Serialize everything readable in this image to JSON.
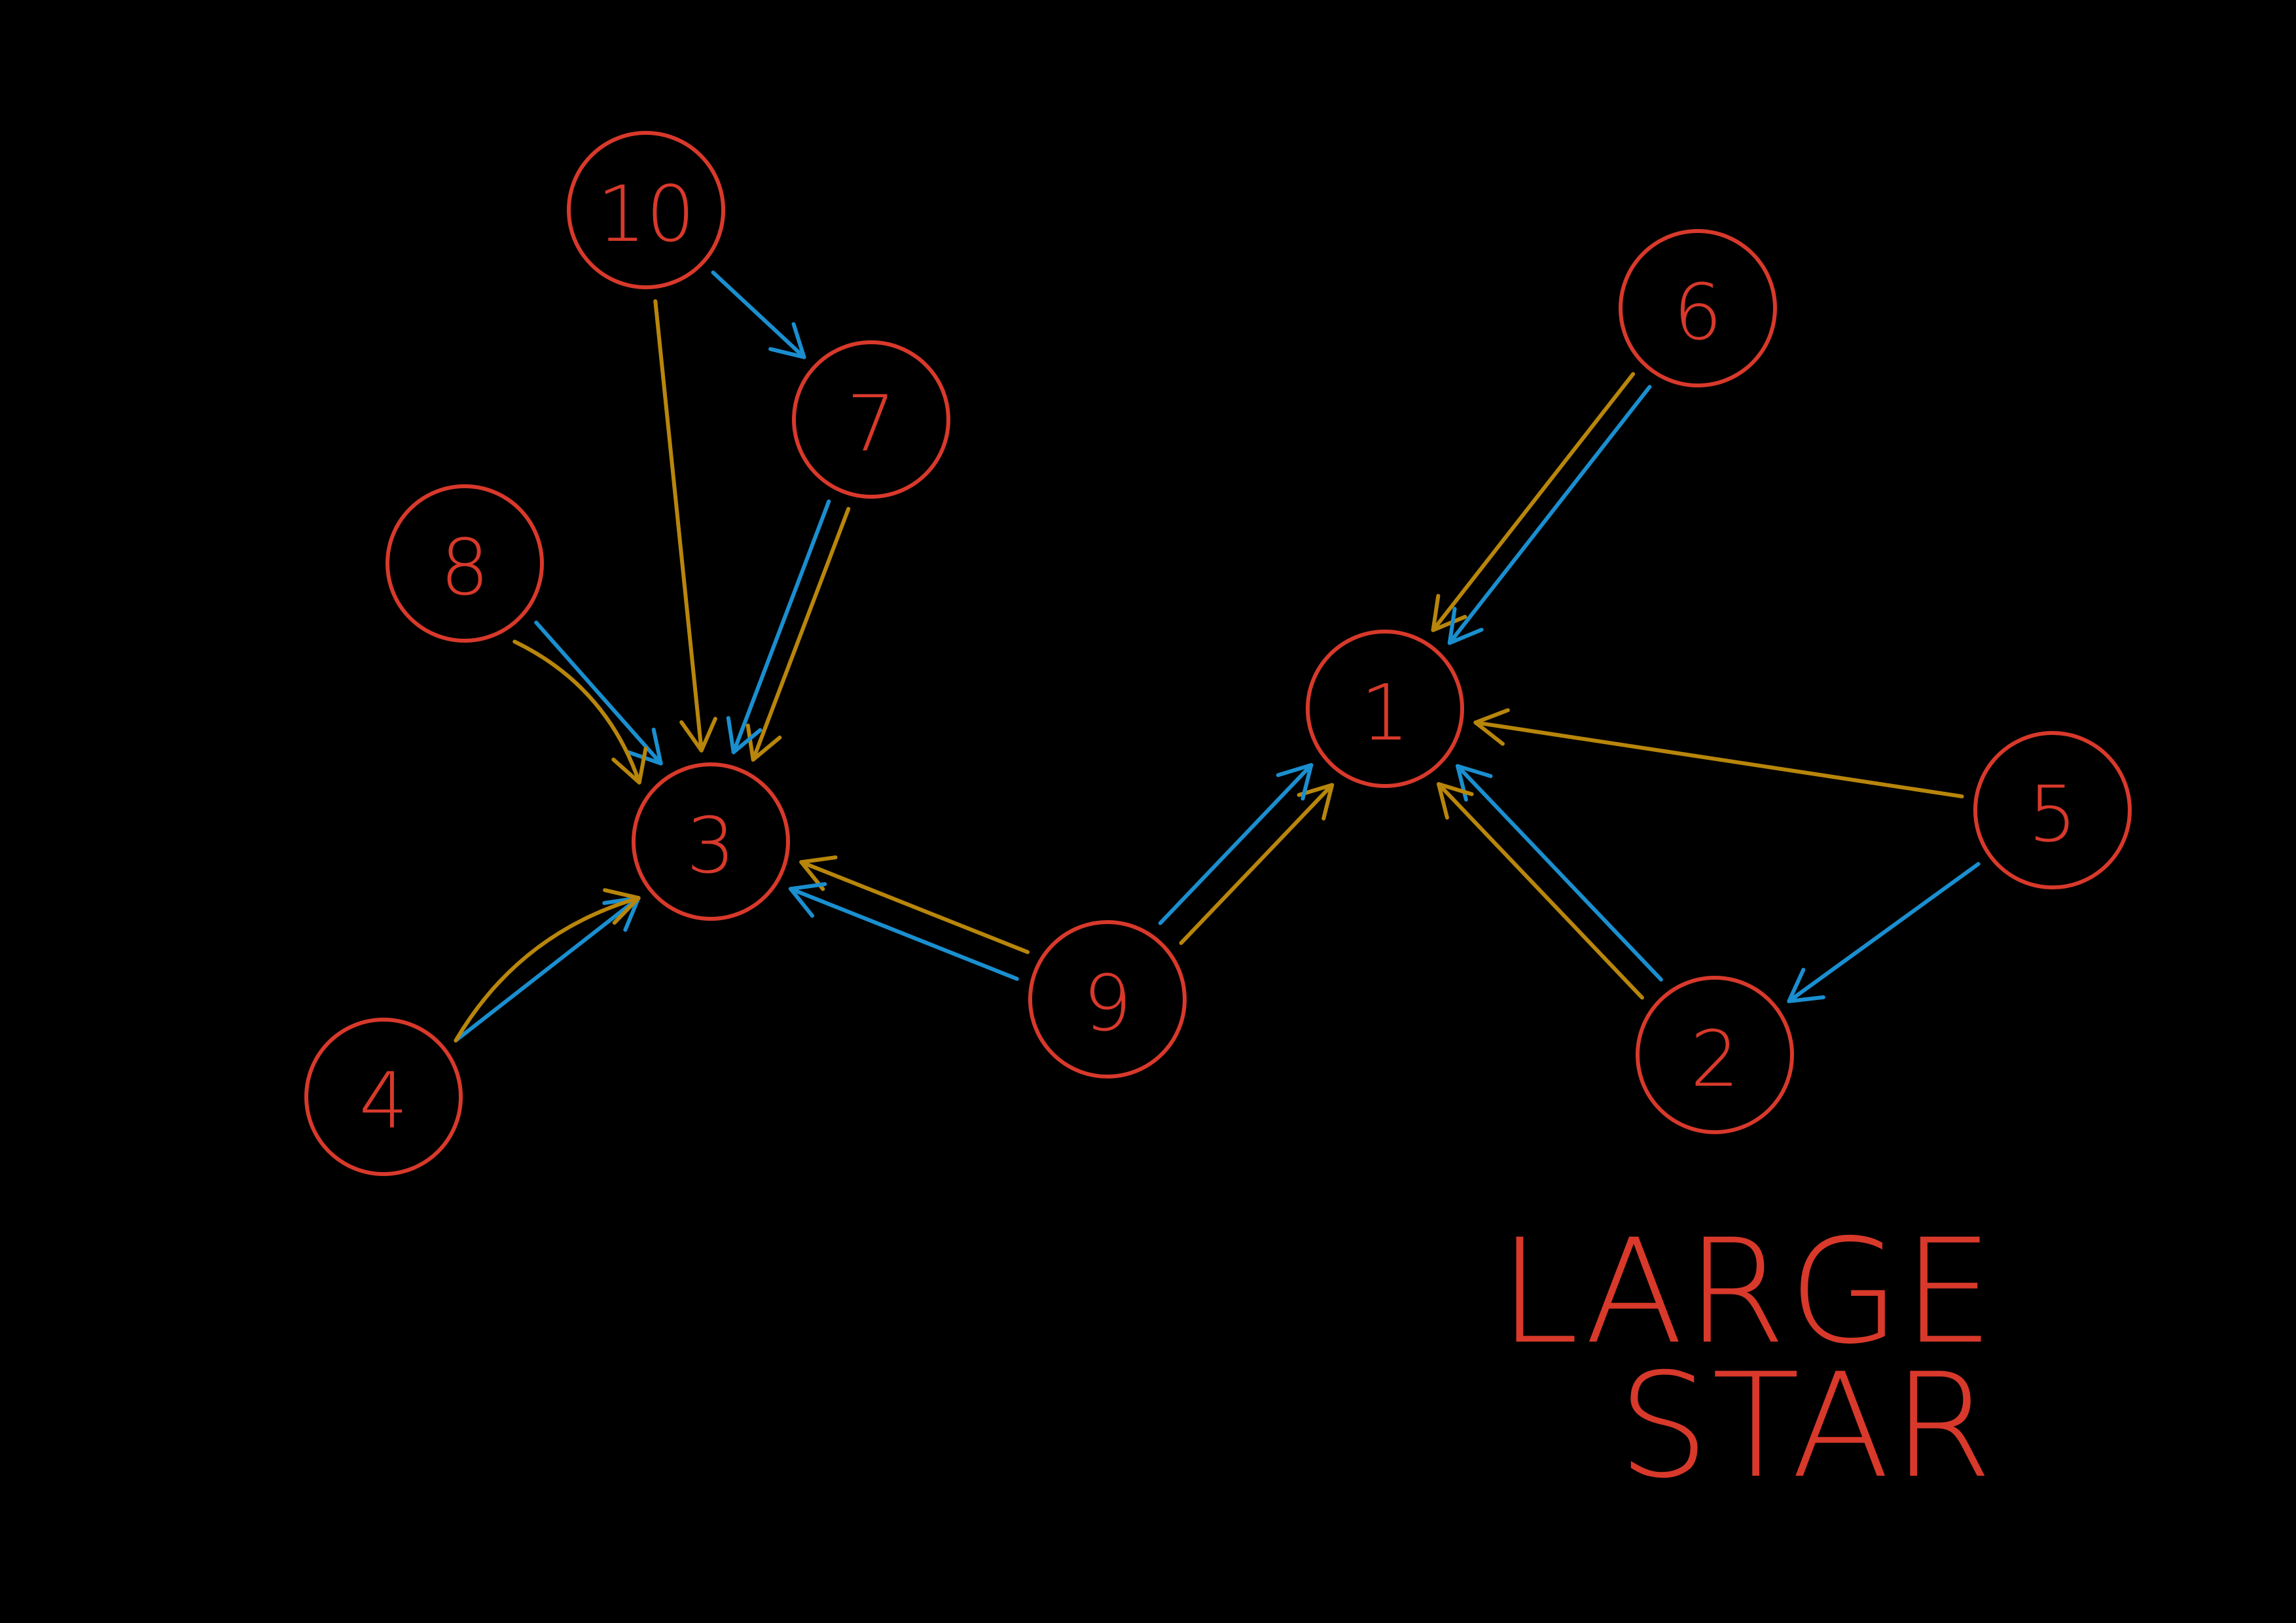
{
  "colors": {
    "background": "#000000",
    "node": "#d8392b",
    "blue_edge": "#1a8fd0",
    "gold_edge": "#b8860b",
    "caption": "#d8392b"
  },
  "nodes": [
    {
      "id": "1",
      "label": "1"
    },
    {
      "id": "2",
      "label": "2"
    },
    {
      "id": "3",
      "label": "3"
    },
    {
      "id": "4",
      "label": "4"
    },
    {
      "id": "5",
      "label": "5"
    },
    {
      "id": "6",
      "label": "6"
    },
    {
      "id": "7",
      "label": "7"
    },
    {
      "id": "8",
      "label": "8"
    },
    {
      "id": "9",
      "label": "9"
    },
    {
      "id": "10",
      "label": "10"
    }
  ],
  "edges": [
    {
      "from": "10",
      "to": "7",
      "color": "blue_edge"
    },
    {
      "from": "10",
      "to": "3",
      "color": "gold_edge"
    },
    {
      "from": "7",
      "to": "3",
      "color": "gold_edge"
    },
    {
      "from": "7",
      "to": "3",
      "color": "blue_edge"
    },
    {
      "from": "8",
      "to": "3",
      "color": "blue_edge"
    },
    {
      "from": "8",
      "to": "3",
      "color": "gold_edge"
    },
    {
      "from": "4",
      "to": "3",
      "color": "blue_edge"
    },
    {
      "from": "4",
      "to": "3",
      "color": "gold_edge"
    },
    {
      "from": "9",
      "to": "3",
      "color": "gold_edge"
    },
    {
      "from": "9",
      "to": "3",
      "color": "blue_edge"
    },
    {
      "from": "9",
      "to": "1",
      "color": "gold_edge"
    },
    {
      "from": "9",
      "to": "1",
      "color": "blue_edge"
    },
    {
      "from": "6",
      "to": "1",
      "color": "gold_edge"
    },
    {
      "from": "6",
      "to": "1",
      "color": "blue_edge"
    },
    {
      "from": "5",
      "to": "1",
      "color": "gold_edge"
    },
    {
      "from": "5",
      "to": "2",
      "color": "blue_edge"
    },
    {
      "from": "2",
      "to": "1",
      "color": "blue_edge"
    },
    {
      "from": "2",
      "to": "1",
      "color": "gold_edge"
    }
  ],
  "caption": {
    "line1": "LARGE",
    "line2": "STAR"
  }
}
